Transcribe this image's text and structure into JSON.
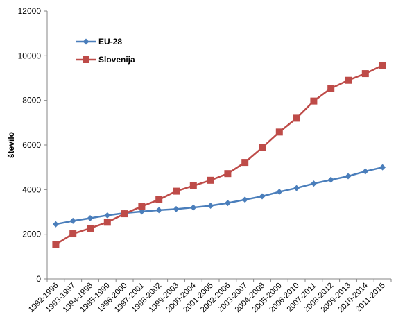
{
  "chart_data": {
    "type": "line",
    "title": "",
    "xlabel": "",
    "ylabel": "število",
    "ylim": [
      0,
      12000
    ],
    "yticks": [
      0,
      2000,
      4000,
      6000,
      8000,
      10000,
      12000
    ],
    "grid": false,
    "legend_position": "top-left",
    "categories": [
      "1992-1996",
      "1993-1997",
      "1994-1998",
      "1995-1999",
      "1996-2000",
      "1997-2001",
      "1998-2002",
      "1999-2003",
      "2000-2004",
      "2001-2005",
      "2002-2006",
      "2003-2007",
      "2004-2008",
      "2005-2009",
      "2006-2010",
      "2007-2011",
      "2008-2012",
      "2009-2013",
      "2010-2014",
      "2011-2015"
    ],
    "series": [
      {
        "name": "EU-28",
        "color": "#4a7ebb",
        "marker": "diamond",
        "values": [
          2450,
          2600,
          2720,
          2850,
          2950,
          3020,
          3080,
          3130,
          3200,
          3280,
          3400,
          3550,
          3700,
          3900,
          4070,
          4270,
          4440,
          4600,
          4820,
          5000
        ]
      },
      {
        "name": "Slovenija",
        "color": "#be4b48",
        "marker": "square",
        "values": [
          1550,
          2020,
          2270,
          2540,
          2920,
          3250,
          3550,
          3930,
          4170,
          4420,
          4720,
          5220,
          5880,
          6580,
          7200,
          7970,
          8540,
          8900,
          9200,
          9570
        ]
      }
    ]
  }
}
